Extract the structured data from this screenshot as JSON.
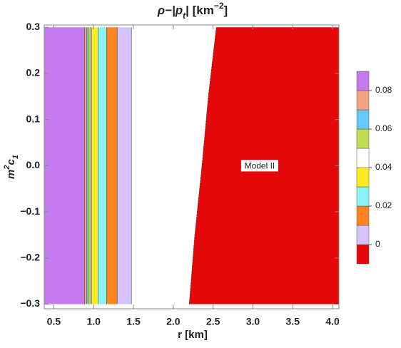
{
  "chart_data": {
    "type": "contour",
    "title_parts": [
      "ρ−|p",
      "t",
      "| [km",
      "−2",
      "]"
    ],
    "xlabel": "r [km]",
    "ylabel_parts": [
      "m",
      "2",
      "c",
      "1"
    ],
    "xlim": [
      0.38,
      4.08
    ],
    "ylim": [
      -0.31,
      0.305
    ],
    "xticks": [
      0.5,
      {
        "value": 1,
        "label": "1.0"
      },
      1.5,
      {
        "value": 2,
        "label": "2.0"
      },
      2.5,
      {
        "value": 3,
        "label": "3.0"
      },
      3.5,
      {
        "value": 4,
        "label": "4.0"
      }
    ],
    "yticks": [
      {
        "value": -0.3,
        "label": "−0.3"
      },
      {
        "value": -0.2,
        "label": "−0.2"
      },
      {
        "value": -0.1,
        "label": "−0.1"
      },
      {
        "value": 0,
        "label": "0.0"
      },
      0.1,
      0.2,
      0.3
    ],
    "y_samples": [
      -0.3,
      -0.15,
      0,
      0.15,
      0.3
    ],
    "levels": [
      -0.01,
      0,
      0.01,
      0.02,
      0.03,
      0.04,
      0.05,
      0.06,
      0.07,
      0.08,
      0.09
    ],
    "colors": [
      "#e5080b",
      "#d6c3fb",
      "#ff8522",
      "#8af4f6",
      "#fdec1f",
      "#ffffff",
      "#c0dc52",
      "#67c8f7",
      "#f3a383",
      "#c57bef"
    ],
    "contours": [
      [
        2.2,
        2.27,
        2.36,
        2.44,
        2.54
      ],
      [
        1.475,
        1.475,
        1.475,
        1.475,
        1.475
      ],
      [
        1.296,
        1.296,
        1.296,
        1.296,
        1.296
      ],
      [
        1.162,
        1.162,
        1.162,
        1.162,
        1.162
      ],
      [
        1.055,
        1.055,
        1.055,
        1.055,
        1.055
      ],
      [
        0.974,
        0.974,
        0.974,
        0.974,
        0.974
      ],
      [
        0.956,
        0.956,
        0.956,
        0.956,
        0.956
      ],
      [
        0.929,
        0.929,
        0.929,
        0.929,
        0.929
      ],
      [
        0.911,
        0.911,
        0.911,
        0.911,
        0.911
      ],
      [
        0.885,
        0.885,
        0.885,
        0.885,
        0.885
      ]
    ],
    "clim": [
      -0.01,
      0.09
    ],
    "cticks": [
      0,
      0.02,
      0.04,
      0.06,
      0.08
    ],
    "annotation": {
      "text": "Model II",
      "x": 3.085,
      "y": 0
    }
  }
}
